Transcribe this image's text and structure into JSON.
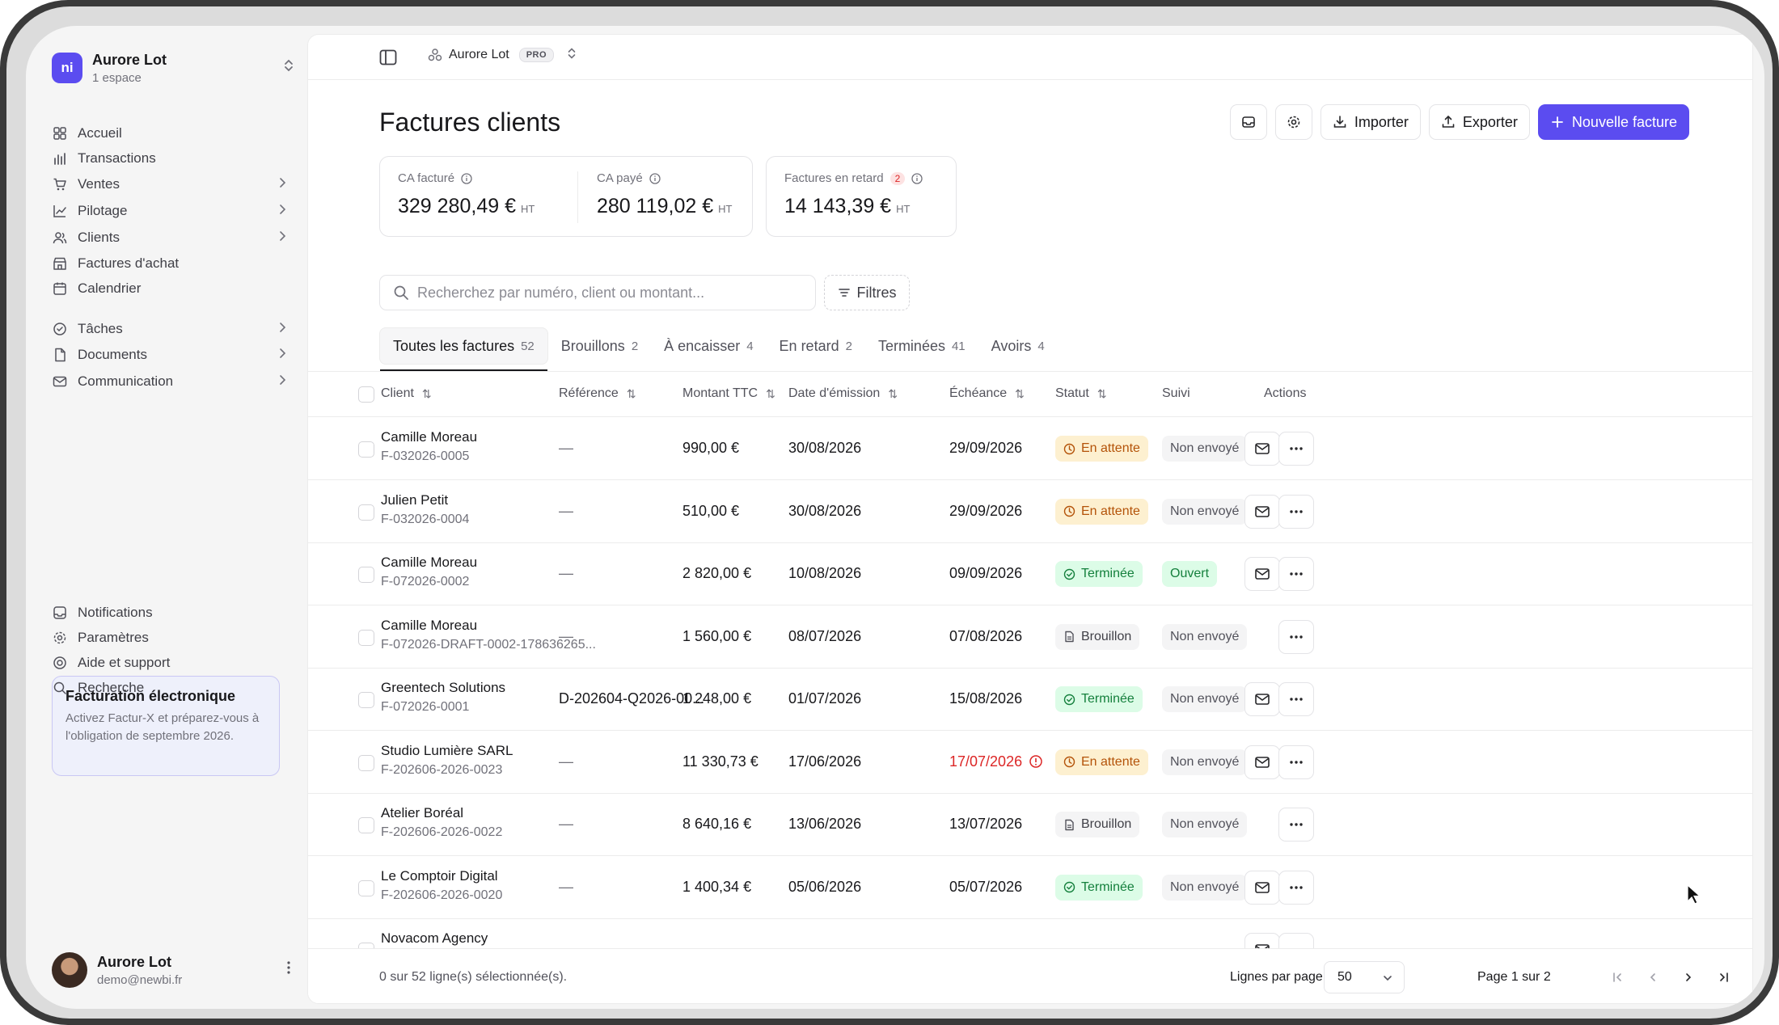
{
  "workspace": {
    "name": "Aurore Lot",
    "subtitle": "1 espace",
    "logo": "ni"
  },
  "sidebar": {
    "items": [
      {
        "label": "Accueil",
        "icon": "home-grid-icon",
        "chevron": false
      },
      {
        "label": "Transactions",
        "icon": "bar-chart-icon",
        "chevron": false
      },
      {
        "label": "Ventes",
        "icon": "cart-icon",
        "chevron": true
      },
      {
        "label": "Pilotage",
        "icon": "line-chart-icon",
        "chevron": true
      },
      {
        "label": "Clients",
        "icon": "users-icon",
        "chevron": true
      },
      {
        "label": "Factures d'achat",
        "icon": "store-icon",
        "chevron": false
      },
      {
        "label": "Calendrier",
        "icon": "calendar-icon",
        "chevron": false
      },
      {
        "label": "Tâches",
        "icon": "tasks-icon",
        "chevron": true
      },
      {
        "label": "Documents",
        "icon": "document-icon",
        "chevron": true
      },
      {
        "label": "Communication",
        "icon": "mail-icon",
        "chevron": true
      }
    ],
    "promo": {
      "title": "Facturation électronique",
      "text": "Activez Factur-X et préparez-vous à l'obligation de septembre 2026."
    },
    "bottom_items": [
      {
        "label": "Notifications",
        "icon": "bell-icon"
      },
      {
        "label": "Paramètres",
        "icon": "gear-icon"
      },
      {
        "label": "Aide et support",
        "icon": "help-icon"
      },
      {
        "label": "Recherche",
        "icon": "search-icon"
      }
    ],
    "user": {
      "name": "Aurore Lot",
      "email": "demo@newbi.fr"
    }
  },
  "topbar": {
    "org": "Aurore Lot",
    "badge": "PRO"
  },
  "page": {
    "title": "Factures clients",
    "actions": {
      "import": "Importer",
      "export": "Exporter",
      "new": "Nouvelle facture"
    }
  },
  "kpis": [
    {
      "label": "CA facturé",
      "value": "329 280,49 €",
      "suffix": "HT"
    },
    {
      "label": "CA payé",
      "value": "280 119,02 €",
      "suffix": "HT"
    },
    {
      "label": "Factures en retard",
      "badge": "2",
      "value": "14 143,39 €",
      "suffix": "HT"
    }
  ],
  "search": {
    "placeholder": "Recherchez par numéro, client ou montant..."
  },
  "filters_label": "Filtres",
  "tabs": [
    {
      "label": "Toutes les factures",
      "count": "52"
    },
    {
      "label": "Brouillons",
      "count": "2"
    },
    {
      "label": "À encaisser",
      "count": "4"
    },
    {
      "label": "En retard",
      "count": "2"
    },
    {
      "label": "Terminées",
      "count": "41"
    },
    {
      "label": "Avoirs",
      "count": "4"
    }
  ],
  "columns": {
    "client": "Client",
    "reference": "Référence",
    "amount": "Montant TTC",
    "issue_date": "Date d'émission",
    "due_date": "Échéance",
    "status": "Statut",
    "tracking": "Suivi",
    "actions": "Actions"
  },
  "rows": [
    {
      "client": "Camille Moreau",
      "number": "F-032026-0005",
      "reference": "—",
      "amount": "990,00 €",
      "issue": "30/08/2026",
      "due": "29/09/2026",
      "overdue": false,
      "status": "En attente",
      "status_kind": "pending",
      "tracking": "Non envoyé",
      "tracking_kind": "suivi",
      "mail": true
    },
    {
      "client": "Julien Petit",
      "number": "F-032026-0004",
      "reference": "—",
      "amount": "510,00 €",
      "issue": "30/08/2026",
      "due": "29/09/2026",
      "overdue": false,
      "status": "En attente",
      "status_kind": "pending",
      "tracking": "Non envoyé",
      "tracking_kind": "suivi",
      "mail": true
    },
    {
      "client": "Camille Moreau",
      "number": "F-072026-0002",
      "reference": "—",
      "amount": "2 820,00 €",
      "issue": "10/08/2026",
      "due": "09/09/2026",
      "overdue": false,
      "status": "Terminée",
      "status_kind": "done",
      "tracking": "Ouvert",
      "tracking_kind": "ouvert",
      "mail": true
    },
    {
      "client": "Camille Moreau",
      "number": "F-072026-DRAFT-0002-178636265...",
      "reference": "—",
      "amount": "1 560,00 €",
      "issue": "08/07/2026",
      "due": "07/08/2026",
      "overdue": false,
      "status": "Brouillon",
      "status_kind": "draft",
      "tracking": "Non envoyé",
      "tracking_kind": "suivi",
      "mail": false
    },
    {
      "client": "Greentech Solutions",
      "number": "F-072026-0001",
      "reference": "D-202604-Q2026-00...",
      "amount": "1 248,00 €",
      "issue": "01/07/2026",
      "due": "15/08/2026",
      "overdue": false,
      "status": "Terminée",
      "status_kind": "done",
      "tracking": "Non envoyé",
      "tracking_kind": "suivi",
      "mail": true
    },
    {
      "client": "Studio Lumière SARL",
      "number": "F-202606-2026-0023",
      "reference": "—",
      "amount": "11 330,73 €",
      "issue": "17/06/2026",
      "due": "17/07/2026",
      "overdue": true,
      "status": "En attente",
      "status_kind": "pending",
      "tracking": "Non envoyé",
      "tracking_kind": "suivi",
      "mail": true
    },
    {
      "client": "Atelier Boréal",
      "number": "F-202606-2026-0022",
      "reference": "—",
      "amount": "8 640,16 €",
      "issue": "13/06/2026",
      "due": "13/07/2026",
      "overdue": false,
      "status": "Brouillon",
      "status_kind": "draft",
      "tracking": "Non envoyé",
      "tracking_kind": "suivi",
      "mail": false
    },
    {
      "client": "Le Comptoir Digital",
      "number": "F-202606-2026-0020",
      "reference": "—",
      "amount": "1 400,34 €",
      "issue": "05/06/2026",
      "due": "05/07/2026",
      "overdue": false,
      "status": "Terminée",
      "status_kind": "done",
      "tracking": "Non envoyé",
      "tracking_kind": "suivi",
      "mail": true
    },
    {
      "client": "Novacom Agency",
      "number": "",
      "reference": "",
      "amount": "",
      "issue": "",
      "due": "",
      "overdue": false,
      "status": "",
      "status_kind": "draft",
      "tracking": "",
      "tracking_kind": "suivi",
      "mail": true
    }
  ],
  "footer": {
    "selection": "0 sur 52 ligne(s) sélectionnée(s).",
    "rows_per_page_label": "Lignes par page",
    "rows_per_page": "50",
    "page_info": "Page 1 sur 2"
  }
}
